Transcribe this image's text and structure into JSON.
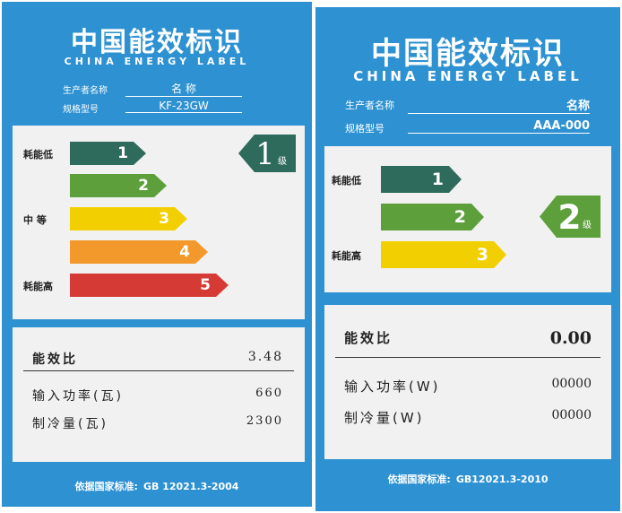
{
  "labels": [
    {
      "title": "中国能效标识",
      "subtitle": "CHINA ENERGY LABEL",
      "fields": [
        {
          "label": "生产者名称",
          "value": "名 称"
        },
        {
          "label": "规格型号",
          "value": "KF-23GW"
        }
      ],
      "grades": [
        {
          "number": "1",
          "side": "耗能低"
        },
        {
          "number": "2"
        },
        {
          "number": "3",
          "side": "中 等"
        },
        {
          "number": "4"
        },
        {
          "number": "5",
          "side": "耗能高"
        }
      ],
      "indicator": {
        "grade": "1",
        "unit": "级"
      },
      "metrics": [
        {
          "label": "能效比",
          "value": "3.48"
        },
        {
          "label": "输入功率(瓦)",
          "value": "660"
        },
        {
          "label": "制冷量(瓦)",
          "value": "2300"
        }
      ],
      "footer_label": "依据国家标准:",
      "footer_value": "GB 12021.3-2004"
    },
    {
      "title": "中国能效标识",
      "subtitle": "CHINA ENERGY LABEL",
      "fields": [
        {
          "label": "生产者名称",
          "value": "名称"
        },
        {
          "label": "规格型号",
          "value": "AAA-000"
        }
      ],
      "grades": [
        {
          "number": "1",
          "side": "耗能低"
        },
        {
          "number": "2"
        },
        {
          "number": "3",
          "side": "耗能高"
        }
      ],
      "indicator": {
        "grade": "2",
        "unit": "级"
      },
      "metrics": [
        {
          "label": "能效比",
          "value": "0.00"
        },
        {
          "label": "输入功率(W)",
          "value": "00000"
        },
        {
          "label": "制冷量(W)",
          "value": "00000"
        }
      ],
      "footer_label": "依据国家标准:",
      "footer_value": "GB12021.3-2010"
    }
  ]
}
